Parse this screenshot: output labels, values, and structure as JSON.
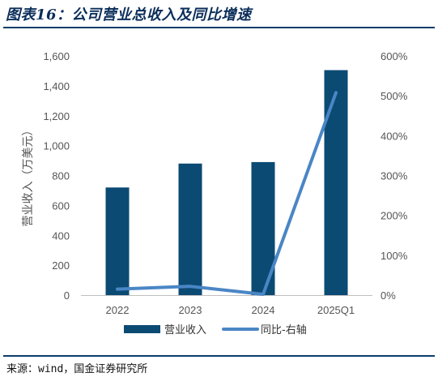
{
  "figure": {
    "title": "图表16：公司营业总收入及同比增速",
    "source": "来源：wind，国金证券研究所"
  },
  "colors": {
    "bar": "#0b4a73",
    "line": "#4a86c5",
    "title": "#0b2e5a"
  },
  "chart_data": {
    "type": "bar",
    "categories": [
      "2022",
      "2023",
      "2024",
      "2025Q1"
    ],
    "series": [
      {
        "name": "营业收入",
        "type": "bar",
        "axis": "left",
        "values": [
          720,
          880,
          890,
          1505
        ]
      },
      {
        "name": "同比-右轴",
        "type": "line",
        "axis": "right",
        "values": [
          15,
          22,
          2,
          508
        ]
      }
    ],
    "ylabel": "营业收入（万美元）",
    "ylim": [
      0,
      1600
    ],
    "y_ticks": [
      "0",
      "200",
      "400",
      "600",
      "800",
      "1,000",
      "1,200",
      "1,400",
      "1,600"
    ],
    "y2lim": [
      0,
      600
    ],
    "y2_ticks": [
      "0%",
      "100%",
      "200%",
      "300%",
      "400%",
      "500%",
      "600%"
    ],
    "grid": false,
    "legend_position": "bottom"
  }
}
